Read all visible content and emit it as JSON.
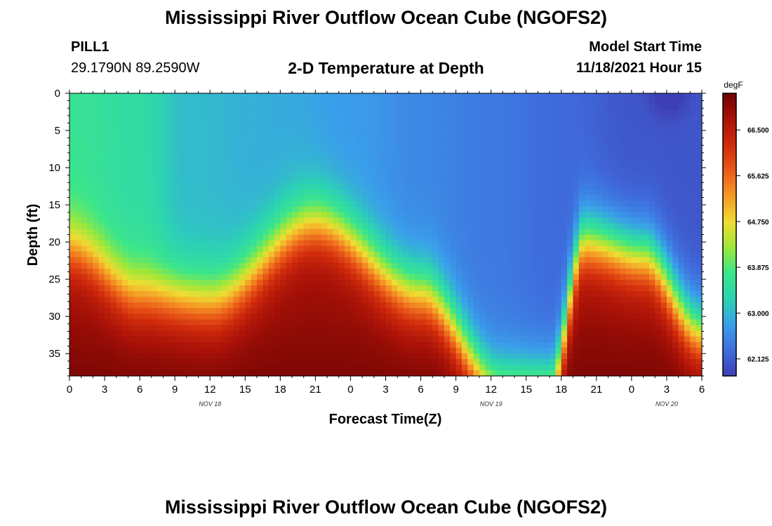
{
  "header": {
    "title": "Mississippi River Outflow Ocean Cube (NGOFS2)",
    "station_name": "PILL1",
    "station_coords": "29.1790N  89.2590W",
    "subtitle": "2-D Temperature at Depth",
    "run_label": "Model Start Time",
    "run_value": "11/18/2021 Hour 15"
  },
  "footer": {
    "title": "Mississippi River Outflow Ocean Cube (NGOFS2)"
  },
  "chart_data": {
    "type": "heatmap",
    "xlabel": "Forecast Time(Z)",
    "ylabel": "Depth (ft)",
    "x_ticks": [
      "0",
      "3",
      "6",
      "9",
      "12",
      "15",
      "18",
      "21",
      "0",
      "3",
      "6",
      "9",
      "12",
      "15",
      "18",
      "21",
      "0",
      "3",
      "6"
    ],
    "date_labels": [
      {
        "text": "NOV 18",
        "at_tick": 4
      },
      {
        "text": "NOV 19",
        "at_tick": 12
      },
      {
        "text": "NOV 20",
        "at_tick": 17
      }
    ],
    "xlim_hours": [
      0,
      54
    ],
    "ylim": [
      0,
      38
    ],
    "y_ticks": [
      0,
      5,
      10,
      15,
      20,
      25,
      30,
      35
    ],
    "colorbar": {
      "unit": "degF",
      "range": [
        61.8,
        67.2
      ],
      "ticks": [
        "66.500",
        "65.625",
        "64.750",
        "63.875",
        "63.000",
        "62.125"
      ],
      "colors": [
        "#3f3fb5",
        "#3f6ede",
        "#3a9fea",
        "#2cd3b2",
        "#3ce68a",
        "#9ee83a",
        "#f0dc32",
        "#f59a26",
        "#ea5a18",
        "#cf2a0c",
        "#a91208",
        "#6e0303"
      ]
    },
    "thermocline_depth_ft": [
      {
        "hour": 0,
        "depth": 21
      },
      {
        "hour": 6,
        "depth": 27
      },
      {
        "hour": 12,
        "depth": 28
      },
      {
        "hour": 21,
        "depth": 17.5
      },
      {
        "hour": 30,
        "depth": 27
      },
      {
        "hour": 37,
        "depth": 40
      },
      {
        "hour": 41,
        "depth": 40
      },
      {
        "hour": 44,
        "depth": 20
      },
      {
        "hour": 49,
        "depth": 22
      },
      {
        "hour": 54,
        "depth": 32
      }
    ],
    "surface_temp_degF": [
      {
        "hour": 0,
        "value": 63.65
      },
      {
        "hour": 6,
        "value": 63.45
      },
      {
        "hour": 10,
        "value": 63.05
      },
      {
        "hour": 18,
        "value": 62.9
      },
      {
        "hour": 24,
        "value": 62.75
      },
      {
        "hour": 30,
        "value": 62.55
      },
      {
        "hour": 36,
        "value": 62.4
      },
      {
        "hour": 42,
        "value": 62.25
      },
      {
        "hour": 48,
        "value": 62.05
      },
      {
        "hour": 54,
        "value": 62.05
      }
    ]
  }
}
